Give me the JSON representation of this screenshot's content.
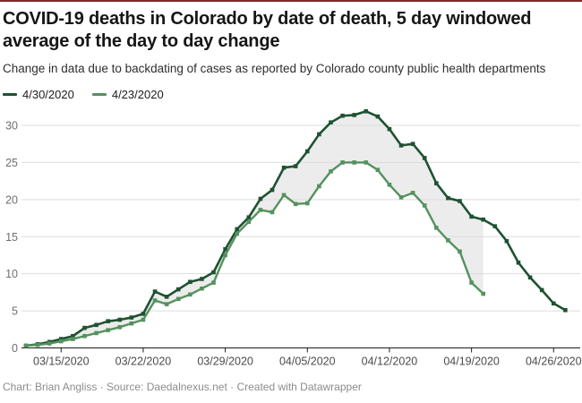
{
  "page": {
    "title": "COVID-19 deaths in Colorado by date of death, 5 day windowed average of the day to day change",
    "subtitle": "Change in data due to backdating of cases as reported by Colorado county public health departments",
    "footer": "Chart: Brian Angliss · Source: Daedalnexus.net · Created with Datawrapper",
    "accent_bar_color": "#7d2a2b"
  },
  "chart_data": {
    "type": "line",
    "title": "COVID-19 deaths in Colorado by date of death, 5 day windowed average of the day to day change",
    "xlabel": "",
    "ylabel": "",
    "grid": "horizontal",
    "legend_position": "top-left",
    "ylim": [
      0,
      33
    ],
    "y_ticks": [
      0,
      5,
      10,
      15,
      20,
      25,
      30
    ],
    "x": [
      "03/12/2020",
      "03/13/2020",
      "03/14/2020",
      "03/15/2020",
      "03/16/2020",
      "03/17/2020",
      "03/18/2020",
      "03/19/2020",
      "03/20/2020",
      "03/21/2020",
      "03/22/2020",
      "03/23/2020",
      "03/24/2020",
      "03/25/2020",
      "03/26/2020",
      "03/27/2020",
      "03/28/2020",
      "03/29/2020",
      "03/30/2020",
      "03/31/2020",
      "04/01/2020",
      "04/02/2020",
      "04/03/2020",
      "04/04/2020",
      "04/05/2020",
      "04/06/2020",
      "04/07/2020",
      "04/08/2020",
      "04/09/2020",
      "04/10/2020",
      "04/11/2020",
      "04/12/2020",
      "04/13/2020",
      "04/14/2020",
      "04/15/2020",
      "04/16/2020",
      "04/17/2020",
      "04/18/2020",
      "04/19/2020",
      "04/20/2020",
      "04/21/2020",
      "04/22/2020",
      "04/23/2020",
      "04/24/2020",
      "04/25/2020",
      "04/26/2020",
      "04/27/2020"
    ],
    "x_tick_labels": [
      "03/15/2020",
      "03/22/2020",
      "03/29/2020",
      "04/05/2020",
      "04/12/2020",
      "04/19/2020",
      "04/26/2020"
    ],
    "x_tick_indices": [
      3,
      10,
      17,
      24,
      31,
      38,
      45
    ],
    "band_between_series": true,
    "band_color": "#ececec",
    "axis_color": "#1a1a1a",
    "gridline_color": "#dddddd",
    "tick_label_color": "#4b4b4b",
    "y_label_color": "#6f6f6f",
    "series": [
      {
        "name": "4/30/2020",
        "color": "#1e5232",
        "values": [
          0.3,
          0.5,
          0.8,
          1.2,
          1.6,
          2.7,
          3.1,
          3.6,
          3.8,
          4.1,
          4.6,
          7.6,
          6.9,
          7.9,
          8.9,
          9.3,
          10.2,
          13.3,
          16.0,
          17.6,
          20.1,
          21.3,
          24.3,
          24.5,
          26.5,
          28.8,
          30.4,
          31.3,
          31.4,
          31.9,
          31.2,
          29.5,
          27.3,
          27.5,
          25.6,
          22.2,
          20.2,
          19.8,
          17.7,
          17.3,
          16.4,
          14.4,
          11.5,
          9.5,
          7.8,
          6.0,
          5.1
        ]
      },
      {
        "name": "4/23/2020",
        "color": "#55915f",
        "values": [
          0.3,
          0.4,
          0.6,
          0.9,
          1.2,
          1.6,
          2.0,
          2.4,
          2.8,
          3.3,
          3.8,
          6.4,
          5.9,
          6.6,
          7.2,
          8.0,
          8.8,
          12.5,
          15.4,
          17.0,
          18.6,
          18.3,
          20.6,
          19.4,
          19.5,
          21.8,
          23.8,
          25.0,
          25.0,
          25.0,
          24.0,
          22.0,
          20.3,
          20.9,
          19.2,
          16.2,
          14.5,
          13.0,
          8.8,
          7.3
        ]
      }
    ]
  }
}
